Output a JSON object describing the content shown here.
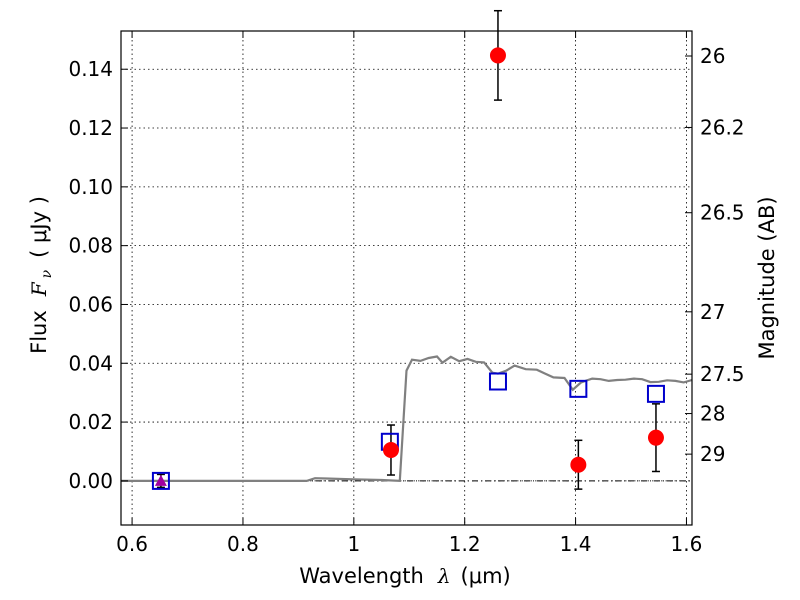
{
  "chart_data": {
    "type": "scatter",
    "xlabel_text": "Wavelength",
    "xlabel_symbol": "λ",
    "xlabel_unit": "(μm)",
    "ylabel_text": "Flux",
    "ylabel_symbol": "F",
    "ylabel_subscript": "ν",
    "ylabel_unit": "( μJy )",
    "y2label": "Magnitude (AB)",
    "xlim": [
      0.58,
      1.61
    ],
    "ylim": [
      -0.015,
      0.153
    ],
    "x_ticks": [
      0.6,
      0.8,
      1.0,
      1.2,
      1.4,
      1.6
    ],
    "x_tick_labels": [
      "0.6",
      "0.8",
      "1",
      "1.2",
      "1.4",
      "1.6"
    ],
    "y_ticks": [
      0.0,
      0.02,
      0.04,
      0.06,
      0.08,
      0.1,
      0.12,
      0.14
    ],
    "y_tick_labels": [
      "0.00",
      "0.02",
      "0.04",
      "0.06",
      "0.08",
      "0.10",
      "0.12",
      "0.14"
    ],
    "y2_ticks": [
      {
        "label": "26",
        "flux": 0.1445
      },
      {
        "label": "26.2",
        "flux": 0.1202
      },
      {
        "label": "26.5",
        "flux": 0.0912
      },
      {
        "label": "27",
        "flux": 0.0575
      },
      {
        "label": "27.5",
        "flux": 0.0363
      },
      {
        "label": "28",
        "flux": 0.0229
      },
      {
        "label": "29",
        "flux": 0.0091
      }
    ],
    "grid": true,
    "model_spectrum": {
      "color": "#808080",
      "x": [
        0.58,
        0.6,
        0.7,
        0.8,
        0.9,
        0.915,
        0.93,
        0.95,
        1.0,
        1.05,
        1.083,
        1.095,
        1.105,
        1.12,
        1.135,
        1.15,
        1.16,
        1.175,
        1.19,
        1.205,
        1.22,
        1.235,
        1.25,
        1.26,
        1.275,
        1.29,
        1.31,
        1.33,
        1.345,
        1.36,
        1.38,
        1.395,
        1.41,
        1.43,
        1.445,
        1.46,
        1.475,
        1.49,
        1.505,
        1.52,
        1.535,
        1.55,
        1.565,
        1.58,
        1.595,
        1.61
      ],
      "y": [
        0.0,
        0.0,
        0.0,
        0.0,
        0.0,
        0.0,
        0.0009,
        0.0008,
        0.0005,
        0.0003,
        0.0,
        0.0375,
        0.0412,
        0.0408,
        0.0418,
        0.0423,
        0.0402,
        0.0422,
        0.0407,
        0.0415,
        0.0405,
        0.0403,
        0.0368,
        0.0365,
        0.0375,
        0.0392,
        0.038,
        0.0378,
        0.0365,
        0.0352,
        0.035,
        0.031,
        0.0335,
        0.0348,
        0.0346,
        0.034,
        0.0343,
        0.0344,
        0.0348,
        0.0346,
        0.0336,
        0.0337,
        0.0342,
        0.034,
        0.0335,
        0.0343
      ]
    },
    "model_photometry": {
      "color": "#0000cc",
      "points": [
        {
          "x": 0.652,
          "y": 0.0
        },
        {
          "x": 1.065,
          "y": 0.0133
        },
        {
          "x": 1.26,
          "y": 0.0338
        },
        {
          "x": 1.405,
          "y": 0.0313
        },
        {
          "x": 1.545,
          "y": 0.0296
        }
      ]
    },
    "observed": {
      "color": "#ff0000",
      "points": [
        {
          "x": 1.067,
          "y": 0.0105,
          "err": 0.0085
        },
        {
          "x": 1.26,
          "y": 0.1447,
          "err": 0.0152
        },
        {
          "x": 1.405,
          "y": 0.0055,
          "err": 0.0083
        },
        {
          "x": 1.545,
          "y": 0.0147,
          "err": 0.0115
        }
      ]
    },
    "upper_limit": {
      "color": "#a000a0",
      "x": 0.652,
      "y": 0.0,
      "err": 0.0022
    }
  }
}
